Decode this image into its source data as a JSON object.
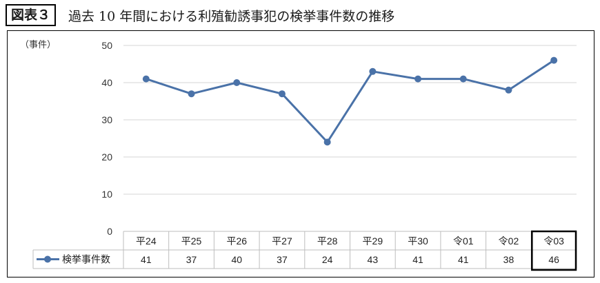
{
  "figure": {
    "label": "図表３",
    "title": "過去 10 年間における利殖勧誘事犯の検挙事件数の推移"
  },
  "chart_data": {
    "type": "line",
    "categories": [
      "平24",
      "平25",
      "平26",
      "平27",
      "平28",
      "平29",
      "平30",
      "令01",
      "令02",
      "令03"
    ],
    "series": [
      {
        "name": "検挙事件数",
        "values": [
          41,
          37,
          40,
          37,
          24,
          43,
          41,
          41,
          38,
          46
        ]
      }
    ],
    "ylabel": "（事件）",
    "ylim": [
      0,
      50
    ],
    "yticks": [
      0,
      10,
      20,
      30,
      40,
      50
    ],
    "grid": true,
    "data_table": true,
    "highlight_category": "令03",
    "color": "#4a72a8"
  }
}
